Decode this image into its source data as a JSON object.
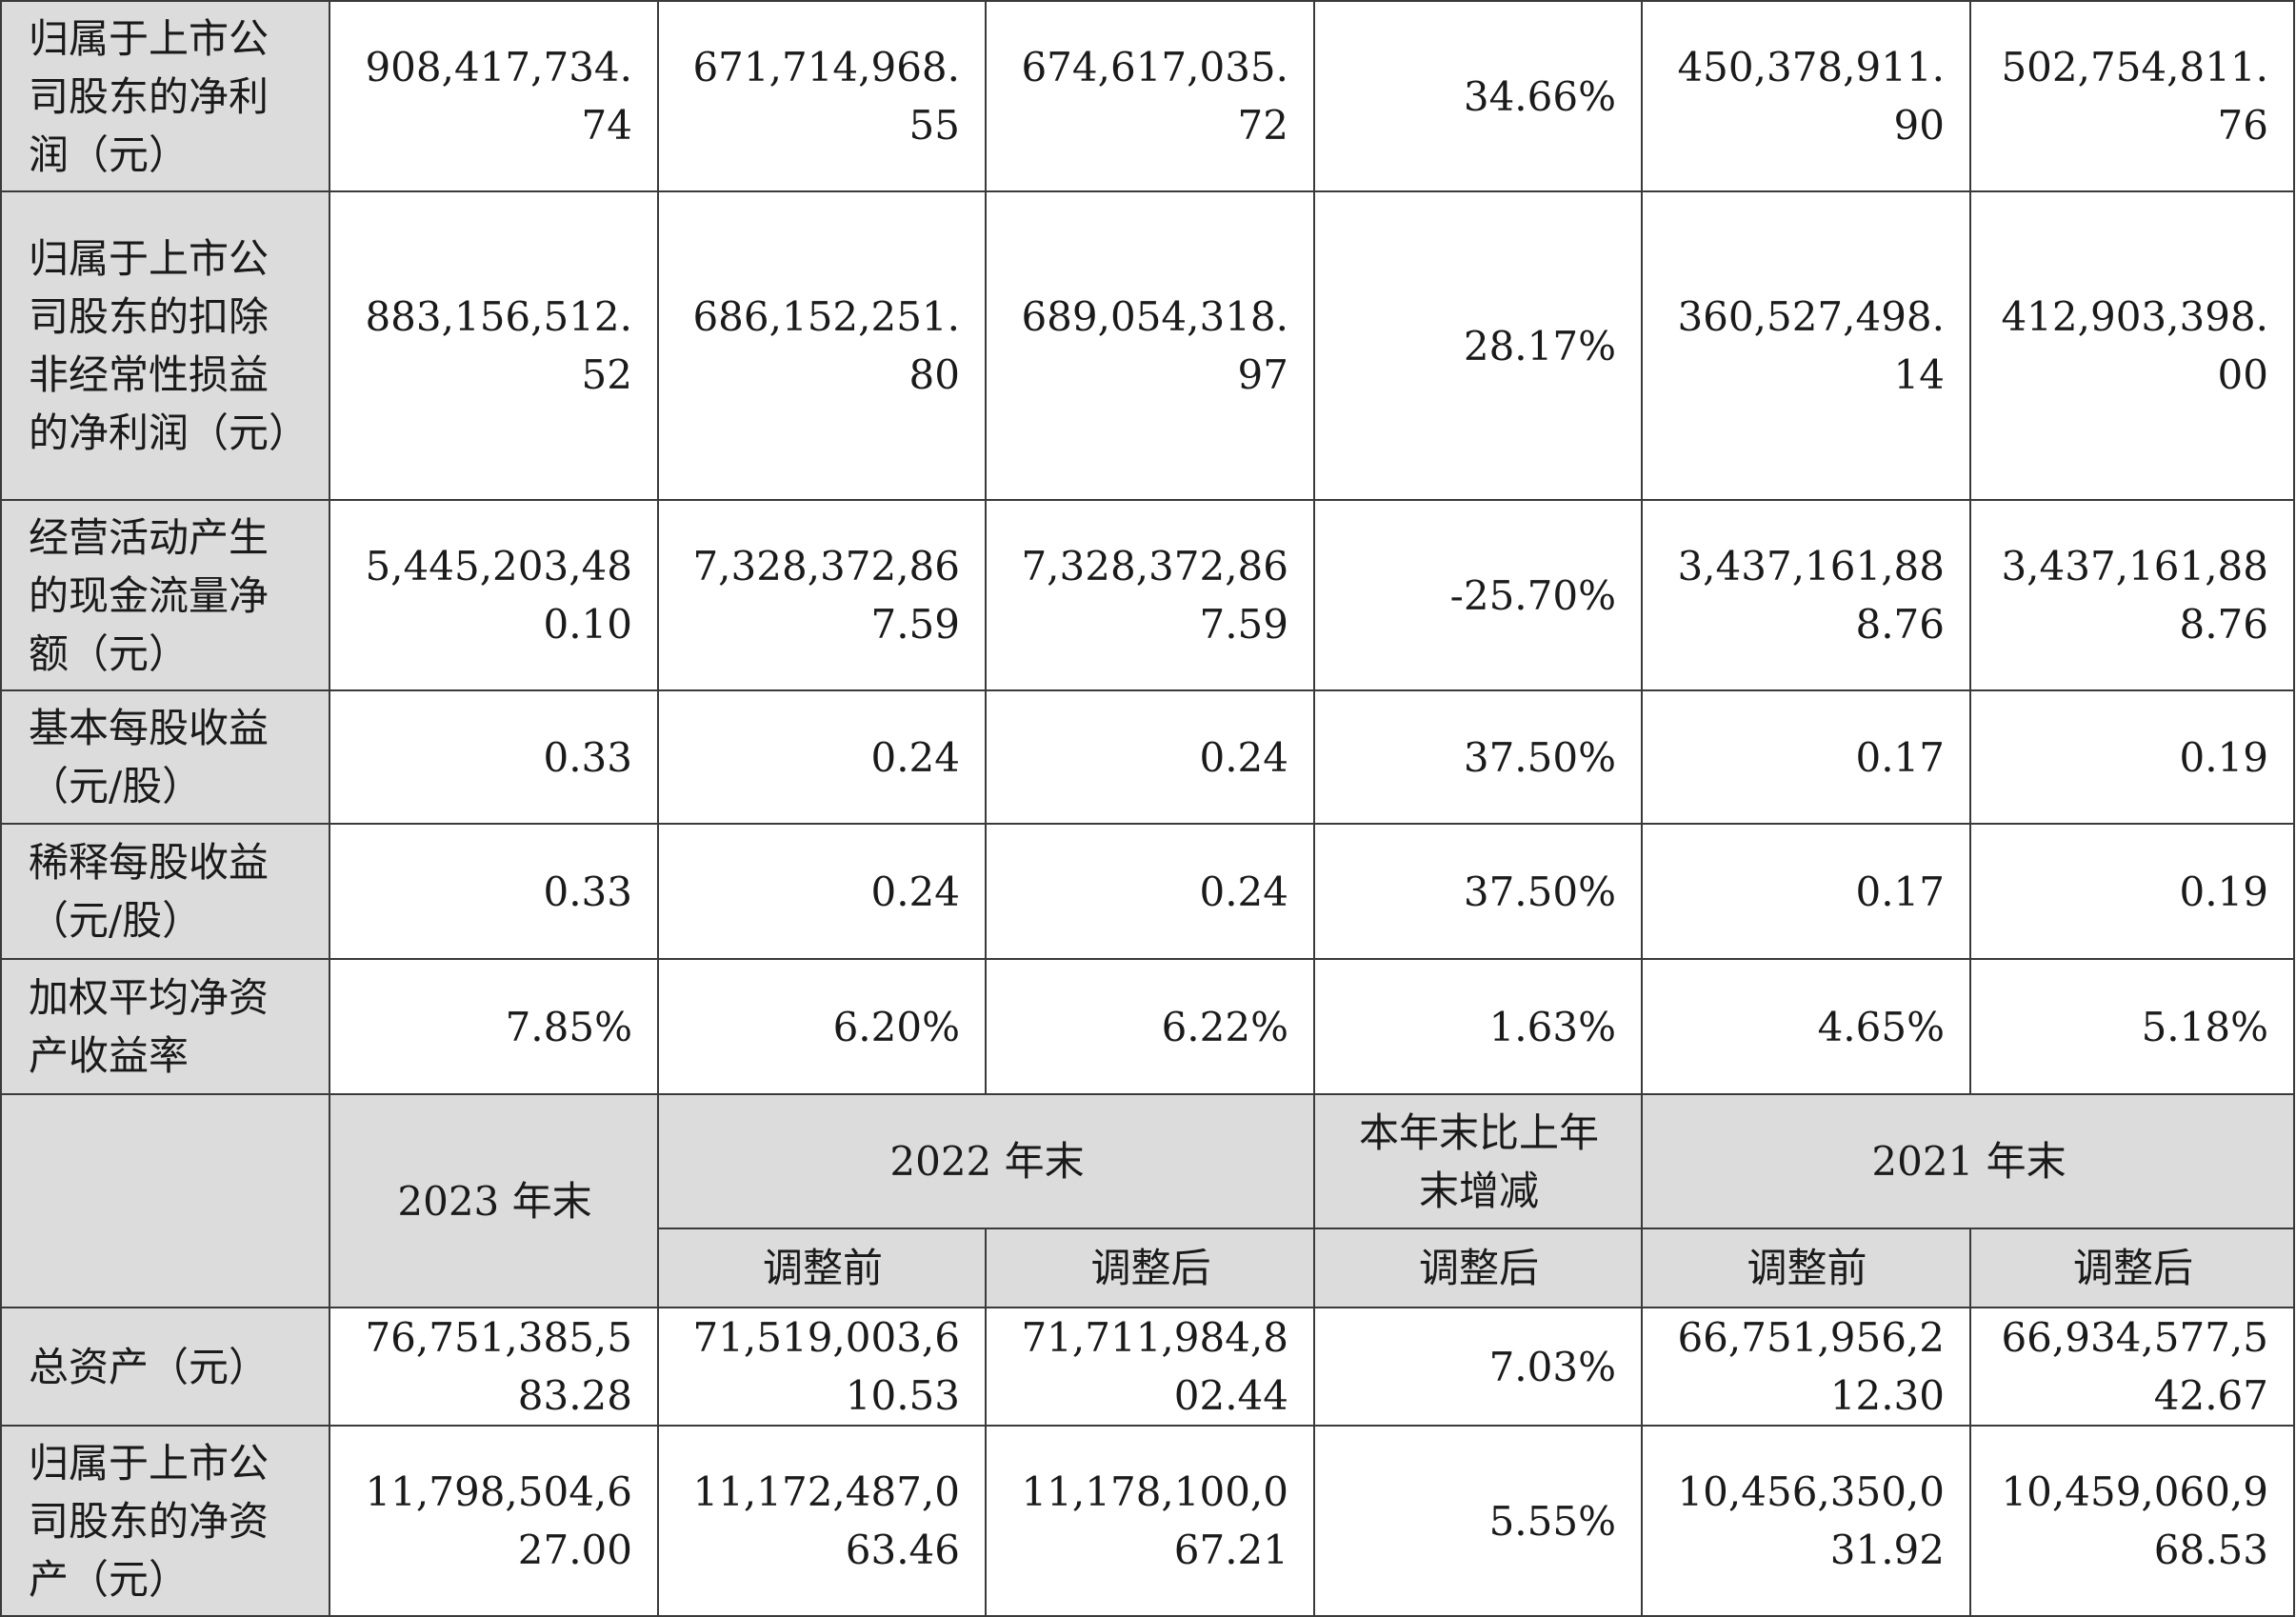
{
  "rows_top": [
    {
      "label": "归属于上市公司股东的净利润（元）",
      "values": [
        "908,417,734.74",
        "671,714,968.55",
        "674,617,035.72",
        "34.66%",
        "450,378,911.90",
        "502,754,811.76"
      ]
    },
    {
      "label": "归属于上市公司股东的扣除非经常性损益的净利润（元）",
      "values": [
        "883,156,512.52",
        "686,152,251.80",
        "689,054,318.97",
        "28.17%",
        "360,527,498.14",
        "412,903,398.00"
      ]
    },
    {
      "label": "经营活动产生的现金流量净额（元）",
      "values": [
        "5,445,203,480.10",
        "7,328,372,867.59",
        "7,328,372,867.59",
        "-25.70%",
        "3,437,161,888.76",
        "3,437,161,888.76"
      ]
    },
    {
      "label": "基本每股收益（元/股）",
      "values": [
        "0.33",
        "0.24",
        "0.24",
        "37.50%",
        "0.17",
        "0.19"
      ]
    },
    {
      "label": "稀释每股收益（元/股）",
      "values": [
        "0.33",
        "0.24",
        "0.24",
        "37.50%",
        "0.17",
        "0.19"
      ]
    },
    {
      "label": "加权平均净资产收益率",
      "values": [
        "7.85%",
        "6.20%",
        "6.22%",
        "1.63%",
        "4.65%",
        "5.18%"
      ]
    }
  ],
  "header": {
    "col_2023": "2023 年末",
    "col_2022": "2022 年末",
    "col_change": "本年末比上年末增减",
    "col_2021": "2021 年末",
    "sub_before_2022": "调整前",
    "sub_after_2022": "调整后",
    "sub_after_change": "调整后",
    "sub_before_2021": "调整前",
    "sub_after_2021": "调整后"
  },
  "rows_bottom": [
    {
      "label": "总资产（元）",
      "values": [
        "76,751,385,583.28",
        "71,519,003,610.53",
        "71,711,984,802.44",
        "7.03%",
        "66,751,956,212.30",
        "66,934,577,542.67"
      ]
    },
    {
      "label": "归属于上市公司股东的净资产（元）",
      "values": [
        "11,798,504,627.00",
        "11,172,487,063.46",
        "11,178,100,067.21",
        "5.55%",
        "10,456,350,031.92",
        "10,459,060,968.53"
      ]
    }
  ]
}
